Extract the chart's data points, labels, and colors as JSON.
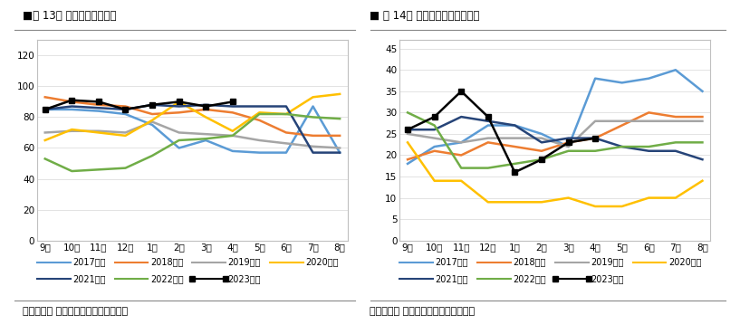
{
  "left_title": "■图 13： 棉花工业库存天数",
  "right_title": "■ 图 14： 纺织企业纱线库存天数",
  "x_labels": [
    "9月",
    "10月",
    "11月",
    "12月",
    "1月",
    "2月",
    "3月",
    "4月",
    "5月",
    "6月",
    "7月",
    "8月"
  ],
  "source_text": "数据来源： 银河期货、中国棉花信息网",
  "left": {
    "ylim": [
      0,
      130
    ],
    "yticks": [
      0,
      20,
      40,
      60,
      80,
      100,
      120
    ],
    "series": {
      "2017年度": {
        "color": "#5b9bd5",
        "marker": null,
        "data": [
          85,
          85,
          84,
          82,
          75,
          60,
          65,
          58,
          57,
          57,
          87,
          57
        ]
      },
      "2018年度": {
        "color": "#ed7d31",
        "marker": null,
        "data": [
          93,
          90,
          88,
          87,
          82,
          83,
          85,
          83,
          78,
          70,
          68,
          68
        ]
      },
      "2019年度": {
        "color": "#a5a5a5",
        "marker": null,
        "data": [
          70,
          71,
          71,
          70,
          77,
          70,
          69,
          68,
          65,
          63,
          61,
          60
        ]
      },
      "2020年度": {
        "color": "#ffc000",
        "marker": null,
        "data": [
          65,
          72,
          70,
          68,
          78,
          90,
          80,
          71,
          83,
          82,
          93,
          95
        ]
      },
      "2021年度": {
        "color": "#264478",
        "marker": null,
        "data": [
          85,
          87,
          86,
          85,
          88,
          87,
          88,
          87,
          87,
          87,
          57,
          57
        ]
      },
      "2022年度": {
        "color": "#70ad47",
        "marker": null,
        "data": [
          53,
          45,
          46,
          47,
          55,
          65,
          66,
          68,
          82,
          82,
          80,
          79
        ]
      },
      "2023年度": {
        "color": "#000000",
        "marker": "s",
        "data": [
          85,
          91,
          90,
          85,
          88,
          90,
          87,
          90,
          null,
          null,
          null,
          null
        ]
      }
    }
  },
  "right": {
    "ylim": [
      0,
      47
    ],
    "yticks": [
      0,
      5,
      10,
      15,
      20,
      25,
      30,
      35,
      40,
      45
    ],
    "series": {
      "2017年度": {
        "color": "#5b9bd5",
        "marker": null,
        "data": [
          18,
          22,
          23,
          27,
          27,
          25,
          22,
          38,
          37,
          38,
          40,
          35
        ]
      },
      "2018年度": {
        "color": "#ed7d31",
        "marker": null,
        "data": [
          19,
          21,
          20,
          23,
          22,
          21,
          23,
          24,
          27,
          30,
          29,
          29
        ]
      },
      "2019年度": {
        "color": "#a5a5a5",
        "marker": null,
        "data": [
          25,
          24,
          23,
          24,
          24,
          24,
          22,
          28,
          28,
          28,
          28,
          28
        ]
      },
      "2020年度": {
        "color": "#ffc000",
        "marker": null,
        "data": [
          23,
          14,
          14,
          9,
          9,
          9,
          10,
          8,
          8,
          10,
          10,
          14
        ]
      },
      "2021年度": {
        "color": "#264478",
        "marker": null,
        "data": [
          26,
          26,
          29,
          28,
          27,
          23,
          24,
          24,
          22,
          21,
          21,
          19
        ]
      },
      "2022年度": {
        "color": "#70ad47",
        "marker": null,
        "data": [
          30,
          27,
          17,
          17,
          18,
          19,
          21,
          21,
          22,
          22,
          23,
          23
        ]
      },
      "2023年度": {
        "color": "#000000",
        "marker": "s",
        "data": [
          26,
          29,
          35,
          29,
          16,
          19,
          23,
          24,
          null,
          null,
          null,
          null
        ]
      }
    }
  },
  "legend_order": [
    "2017年度",
    "2018年度",
    "2019年度",
    "2020年度",
    "2021年度",
    "2022年度",
    "2023年度"
  ],
  "background_color": "#ffffff",
  "plot_bg_color": "#ffffff",
  "border_color": "#c0c0c0",
  "title_fontsize": 8.5,
  "tick_fontsize": 7.5,
  "legend_fontsize": 7,
  "source_fontsize": 8
}
